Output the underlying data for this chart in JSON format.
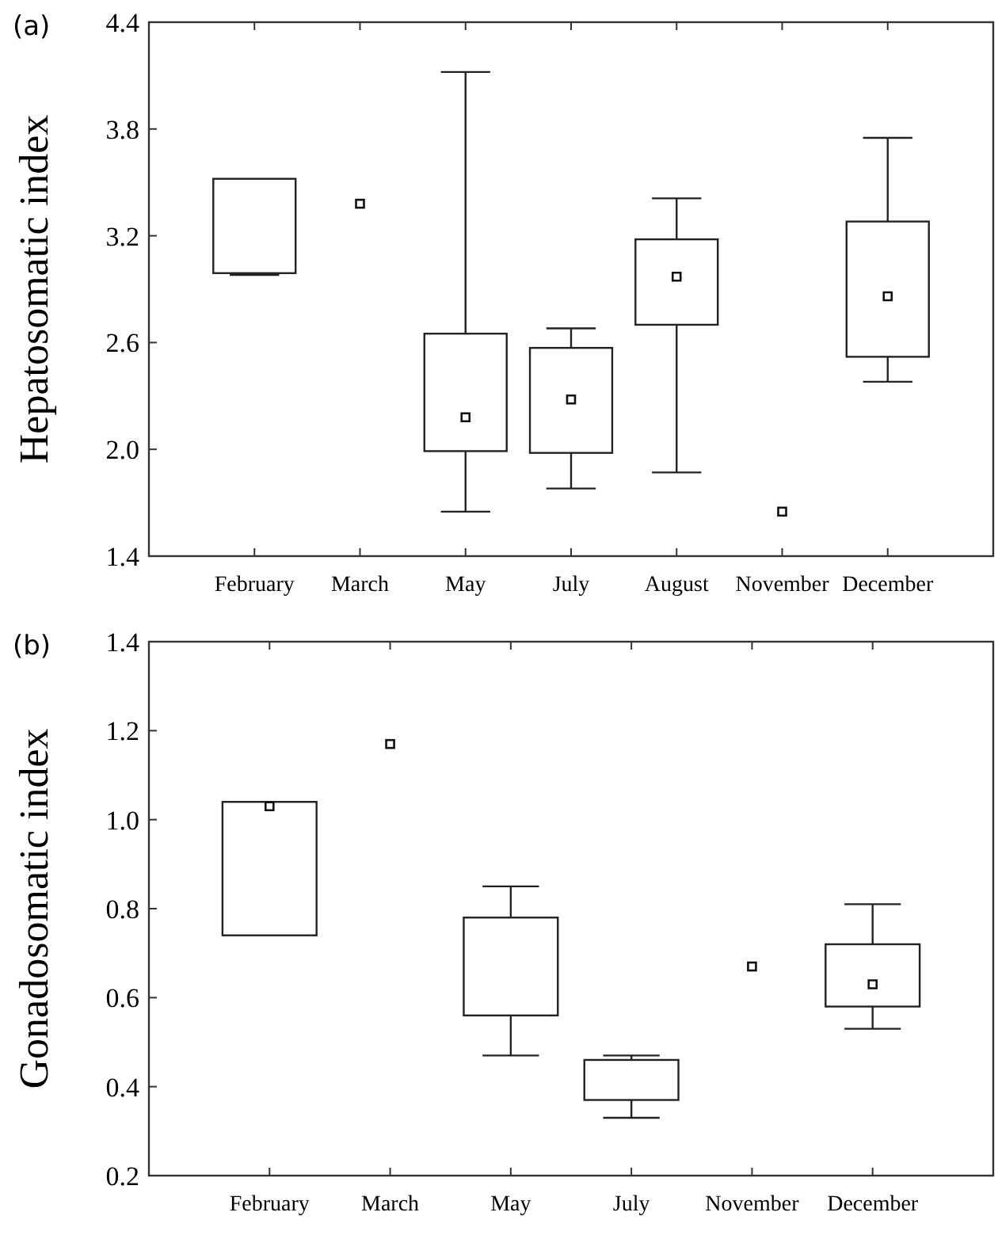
{
  "chart_data": [
    {
      "type": "box",
      "title": "(a)",
      "ylabel": "Hepatosomatic index",
      "categories": [
        "February",
        "March",
        "May",
        "July",
        "August",
        "November",
        "December"
      ],
      "ylim": [
        1.4,
        4.4
      ],
      "yticks": [
        1.4,
        {
          "value": 2,
          "label": "2.0"
        },
        2.6,
        3.2,
        3.8,
        4.4
      ],
      "boxes": [
        {
          "low": 2.98,
          "q1": 2.99,
          "median": 2.99,
          "q3": 3.52,
          "high": 3.52
        },
        null,
        {
          "low": 1.65,
          "q1": 1.99,
          "median": 2.18,
          "q3": 2.65,
          "high": 4.12
        },
        {
          "low": 1.78,
          "q1": 1.98,
          "median": 2.28,
          "q3": 2.57,
          "high": 2.68
        },
        {
          "low": 1.87,
          "q1": 2.7,
          "median": 2.97,
          "q3": 3.18,
          "high": 3.41
        },
        null,
        {
          "low": 2.38,
          "q1": 2.52,
          "median": 2.86,
          "q3": 3.28,
          "high": 3.75
        }
      ],
      "series": [
        {
          "type": "scatter",
          "marker": "square",
          "color": "#111111",
          "x": [
            "March",
            "November"
          ],
          "values": [
            3.38,
            1.65
          ]
        }
      ]
    },
    {
      "type": "box",
      "title": "(b)",
      "ylabel": "Gonadosomatic index",
      "categories": [
        "February",
        "March",
        "May",
        "July",
        "November",
        "December"
      ],
      "ylim": [
        0.2,
        1.4
      ],
      "yticks": [
        0.2,
        0.4,
        0.6,
        0.8,
        {
          "value": 1,
          "label": "1.0"
        },
        1.2,
        1.4
      ],
      "boxes": [
        {
          "low": 0.74,
          "q1": 0.74,
          "median": 1.03,
          "q3": 1.04,
          "high": 1.04
        },
        null,
        {
          "low": 0.47,
          "q1": 0.56,
          "median": 0.56,
          "q3": 0.78,
          "high": 0.85
        },
        {
          "low": 0.33,
          "q1": 0.37,
          "median": 0.37,
          "q3": 0.46,
          "high": 0.47
        },
        null,
        {
          "low": 0.53,
          "q1": 0.58,
          "median": 0.63,
          "q3": 0.72,
          "high": 0.81
        }
      ],
      "series": [
        {
          "type": "scatter",
          "marker": "square",
          "color": "#111111",
          "x": [
            "March",
            "November"
          ],
          "values": [
            1.17,
            0.67
          ]
        }
      ]
    }
  ]
}
